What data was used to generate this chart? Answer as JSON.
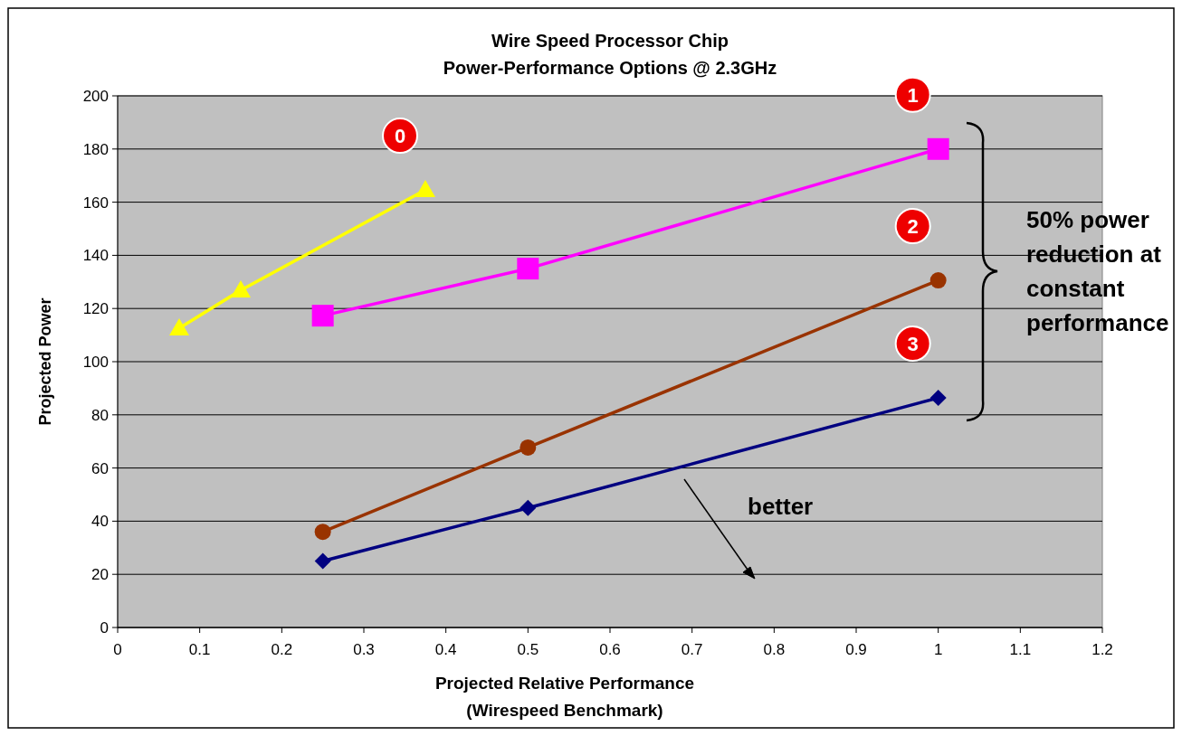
{
  "chart_data": {
    "type": "line",
    "title": "Wire Speed Processor Chip\nPower-Performance Options @ 2.3GHz",
    "xlabel": "Projected Relative Performance\n(Wirespeed Benchmark)",
    "ylabel": "Projected Power",
    "xlim": [
      0,
      1.2
    ],
    "xticks": [
      0,
      0.1,
      0.2,
      0.3,
      0.4,
      0.5,
      0.6,
      0.7,
      0.8,
      0.9,
      1,
      1.1,
      1.2
    ],
    "ylim": [
      0,
      200
    ],
    "yticks": [
      0,
      20,
      40,
      60,
      80,
      100,
      120,
      140,
      160,
      180,
      200
    ],
    "grid": "y",
    "series": [
      {
        "name": "0",
        "color": "#ffff00",
        "marker": "triangle",
        "x": [
          0.075,
          0.15,
          0.375
        ],
        "values": [
          112.6,
          126.9,
          164.6
        ]
      },
      {
        "name": "1",
        "color": "#ff00ff",
        "marker": "square",
        "x": [
          0.25,
          0.5,
          1
        ],
        "values": [
          117.3,
          135,
          180
        ]
      },
      {
        "name": "2",
        "color": "#993300",
        "marker": "circle",
        "x": [
          0.25,
          0.5,
          1
        ],
        "values": [
          36,
          67.7,
          130.6
        ]
      },
      {
        "name": "3",
        "color": "#000080",
        "marker": "diamond",
        "x": [
          0.25,
          0.5,
          1
        ],
        "values": [
          25,
          45,
          86.4
        ]
      }
    ],
    "annotations": [
      "50% power\nreduction at\nconstant\nperformance",
      "better"
    ]
  }
}
